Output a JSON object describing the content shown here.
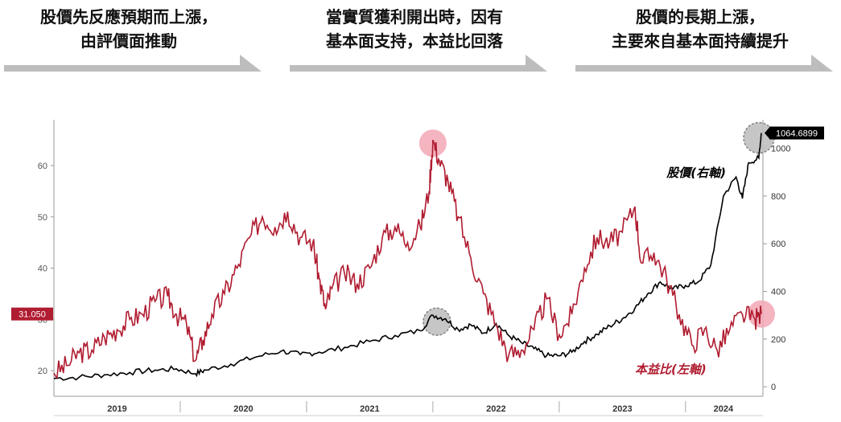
{
  "phases": [
    {
      "line1": "股價先反應預期而上漲，",
      "line2": "由評價面推動"
    },
    {
      "line1": "當實質獲利開出時，因有",
      "line2": "基本面支持，本益比回落"
    },
    {
      "line1": "股價的長期上漲，",
      "line2": "主要來自基本面持續提升"
    }
  ],
  "chart_data": {
    "type": "line",
    "x_labels": [
      "2019",
      "2020",
      "2021",
      "2022",
      "2023",
      "2024"
    ],
    "x_range": [
      2019.0,
      2024.6
    ],
    "y_left": {
      "ticks": [
        "20",
        "30",
        "40",
        "50",
        "60"
      ],
      "range": [
        15,
        68
      ]
    },
    "y_right": {
      "ticks": [
        "0",
        "200",
        "400",
        "600",
        "800",
        "1000"
      ],
      "range": [
        -40,
        1100
      ]
    },
    "grid": false,
    "left_badge": "31.050",
    "right_badge": "1064.6899",
    "colors": {
      "pe": "#b01c30",
      "price": "#000000",
      "highlight_pe": "#f2a7b5",
      "highlight_price": "#c0c0c0"
    },
    "series": [
      {
        "name": "本益比(左軸)",
        "axis": "left",
        "points": [
          [
            2019.0,
            19.5
          ],
          [
            2019.1,
            21
          ],
          [
            2019.2,
            23.5
          ],
          [
            2019.3,
            24
          ],
          [
            2019.4,
            26.5
          ],
          [
            2019.5,
            28
          ],
          [
            2019.6,
            30
          ],
          [
            2019.7,
            31
          ],
          [
            2019.8,
            33.5
          ],
          [
            2019.9,
            34.5
          ],
          [
            2019.97,
            31
          ],
          [
            2020.05,
            29
          ],
          [
            2020.12,
            22
          ],
          [
            2020.18,
            26
          ],
          [
            2020.25,
            31
          ],
          [
            2020.35,
            35
          ],
          [
            2020.45,
            40
          ],
          [
            2020.55,
            46
          ],
          [
            2020.65,
            50
          ],
          [
            2020.75,
            48
          ],
          [
            2020.85,
            51
          ],
          [
            2020.95,
            46
          ],
          [
            2021.05,
            45
          ],
          [
            2021.1,
            38
          ],
          [
            2021.15,
            32
          ],
          [
            2021.2,
            36
          ],
          [
            2021.3,
            39
          ],
          [
            2021.4,
            37
          ],
          [
            2021.5,
            40
          ],
          [
            2021.6,
            46
          ],
          [
            2021.7,
            48
          ],
          [
            2021.8,
            45
          ],
          [
            2021.9,
            48
          ],
          [
            2021.97,
            55
          ],
          [
            2022.0,
            65
          ],
          [
            2022.05,
            61
          ],
          [
            2022.12,
            57
          ],
          [
            2022.2,
            50
          ],
          [
            2022.3,
            42
          ],
          [
            2022.4,
            35
          ],
          [
            2022.5,
            29
          ],
          [
            2022.6,
            23
          ],
          [
            2022.7,
            24
          ],
          [
            2022.8,
            28
          ],
          [
            2022.9,
            34
          ],
          [
            2023.0,
            27
          ],
          [
            2023.1,
            31
          ],
          [
            2023.2,
            40
          ],
          [
            2023.3,
            46
          ],
          [
            2023.4,
            45
          ],
          [
            2023.5,
            47
          ],
          [
            2023.6,
            52
          ],
          [
            2023.65,
            41
          ],
          [
            2023.75,
            43
          ],
          [
            2023.85,
            38
          ],
          [
            2023.95,
            31
          ],
          [
            2024.05,
            25
          ],
          [
            2024.15,
            28
          ],
          [
            2024.25,
            24
          ],
          [
            2024.35,
            28
          ],
          [
            2024.45,
            31
          ],
          [
            2024.55,
            30
          ],
          [
            2024.6,
            31.05
          ]
        ]
      },
      {
        "name": "股價(右軸)",
        "axis": "right",
        "points": [
          [
            2019.0,
            35
          ],
          [
            2019.2,
            40
          ],
          [
            2019.4,
            50
          ],
          [
            2019.6,
            60
          ],
          [
            2019.8,
            70
          ],
          [
            2019.97,
            75
          ],
          [
            2020.12,
            55
          ],
          [
            2020.2,
            70
          ],
          [
            2020.4,
            95
          ],
          [
            2020.6,
            125
          ],
          [
            2020.8,
            150
          ],
          [
            2020.95,
            135
          ],
          [
            2021.1,
            145
          ],
          [
            2021.3,
            165
          ],
          [
            2021.5,
            190
          ],
          [
            2021.7,
            215
          ],
          [
            2021.9,
            235
          ],
          [
            2022.0,
            300
          ],
          [
            2022.1,
            285
          ],
          [
            2022.2,
            240
          ],
          [
            2022.3,
            260
          ],
          [
            2022.4,
            225
          ],
          [
            2022.5,
            265
          ],
          [
            2022.6,
            215
          ],
          [
            2022.7,
            185
          ],
          [
            2022.8,
            160
          ],
          [
            2022.9,
            130
          ],
          [
            2023.0,
            130
          ],
          [
            2023.1,
            145
          ],
          [
            2023.2,
            190
          ],
          [
            2023.3,
            220
          ],
          [
            2023.4,
            255
          ],
          [
            2023.5,
            285
          ],
          [
            2023.6,
            330
          ],
          [
            2023.7,
            390
          ],
          [
            2023.8,
            440
          ],
          [
            2023.9,
            410
          ],
          [
            2024.0,
            425
          ],
          [
            2024.1,
            440
          ],
          [
            2024.2,
            510
          ],
          [
            2024.3,
            800
          ],
          [
            2024.4,
            880
          ],
          [
            2024.45,
            790
          ],
          [
            2024.5,
            940
          ],
          [
            2024.58,
            960
          ],
          [
            2024.6,
            1064.69
          ]
        ]
      }
    ],
    "annotations": [
      {
        "text": "股價(右軸)",
        "series": "股價(右軸)"
      },
      {
        "text": "本益比(左軸)",
        "series": "本益比(左軸)"
      }
    ]
  }
}
